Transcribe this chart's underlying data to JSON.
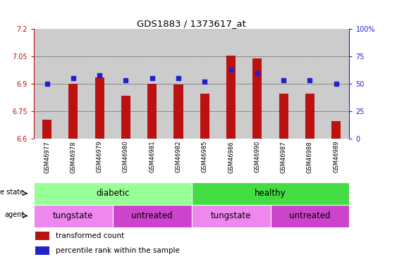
{
  "title": "GDS1883 / 1373617_at",
  "samples": [
    "GSM46977",
    "GSM46978",
    "GSM46979",
    "GSM46980",
    "GSM46981",
    "GSM46982",
    "GSM46985",
    "GSM46986",
    "GSM46990",
    "GSM46987",
    "GSM46988",
    "GSM46989"
  ],
  "transformed_count": [
    6.705,
    6.9,
    6.935,
    6.835,
    6.9,
    6.895,
    6.845,
    7.055,
    7.04,
    6.845,
    6.845,
    6.695
  ],
  "percentile_rank": [
    50,
    55,
    58,
    53,
    55,
    55,
    52,
    63,
    60,
    53,
    53,
    50
  ],
  "ylim_left": [
    6.6,
    7.2
  ],
  "ylim_right": [
    0,
    100
  ],
  "yticks_left": [
    6.6,
    6.75,
    6.9,
    7.05,
    7.2
  ],
  "yticks_right": [
    0,
    25,
    50,
    75,
    100
  ],
  "grid_lines": [
    6.75,
    6.9,
    7.05
  ],
  "disease_state_ranges": [
    [
      0,
      6
    ],
    [
      6,
      12
    ]
  ],
  "disease_state_labels": [
    "diabetic",
    "healthy"
  ],
  "disease_state_colors": [
    "#99ff99",
    "#44dd44"
  ],
  "agent_ranges": [
    [
      0,
      3
    ],
    [
      3,
      6
    ],
    [
      6,
      9
    ],
    [
      9,
      12
    ]
  ],
  "agent_labels": [
    "tungstate",
    "untreated",
    "tungstate",
    "untreated"
  ],
  "agent_colors": [
    "#ee88ee",
    "#cc44cc",
    "#ee88ee",
    "#cc44cc"
  ],
  "color_red": "#bb1111",
  "color_blue": "#2222cc",
  "color_sample_bg": "#cccccc",
  "bar_width": 0.35,
  "dot_size": 18,
  "legend_items": [
    "transformed count",
    "percentile rank within the sample"
  ],
  "legend_colors": [
    "#bb1111",
    "#2222cc"
  ]
}
